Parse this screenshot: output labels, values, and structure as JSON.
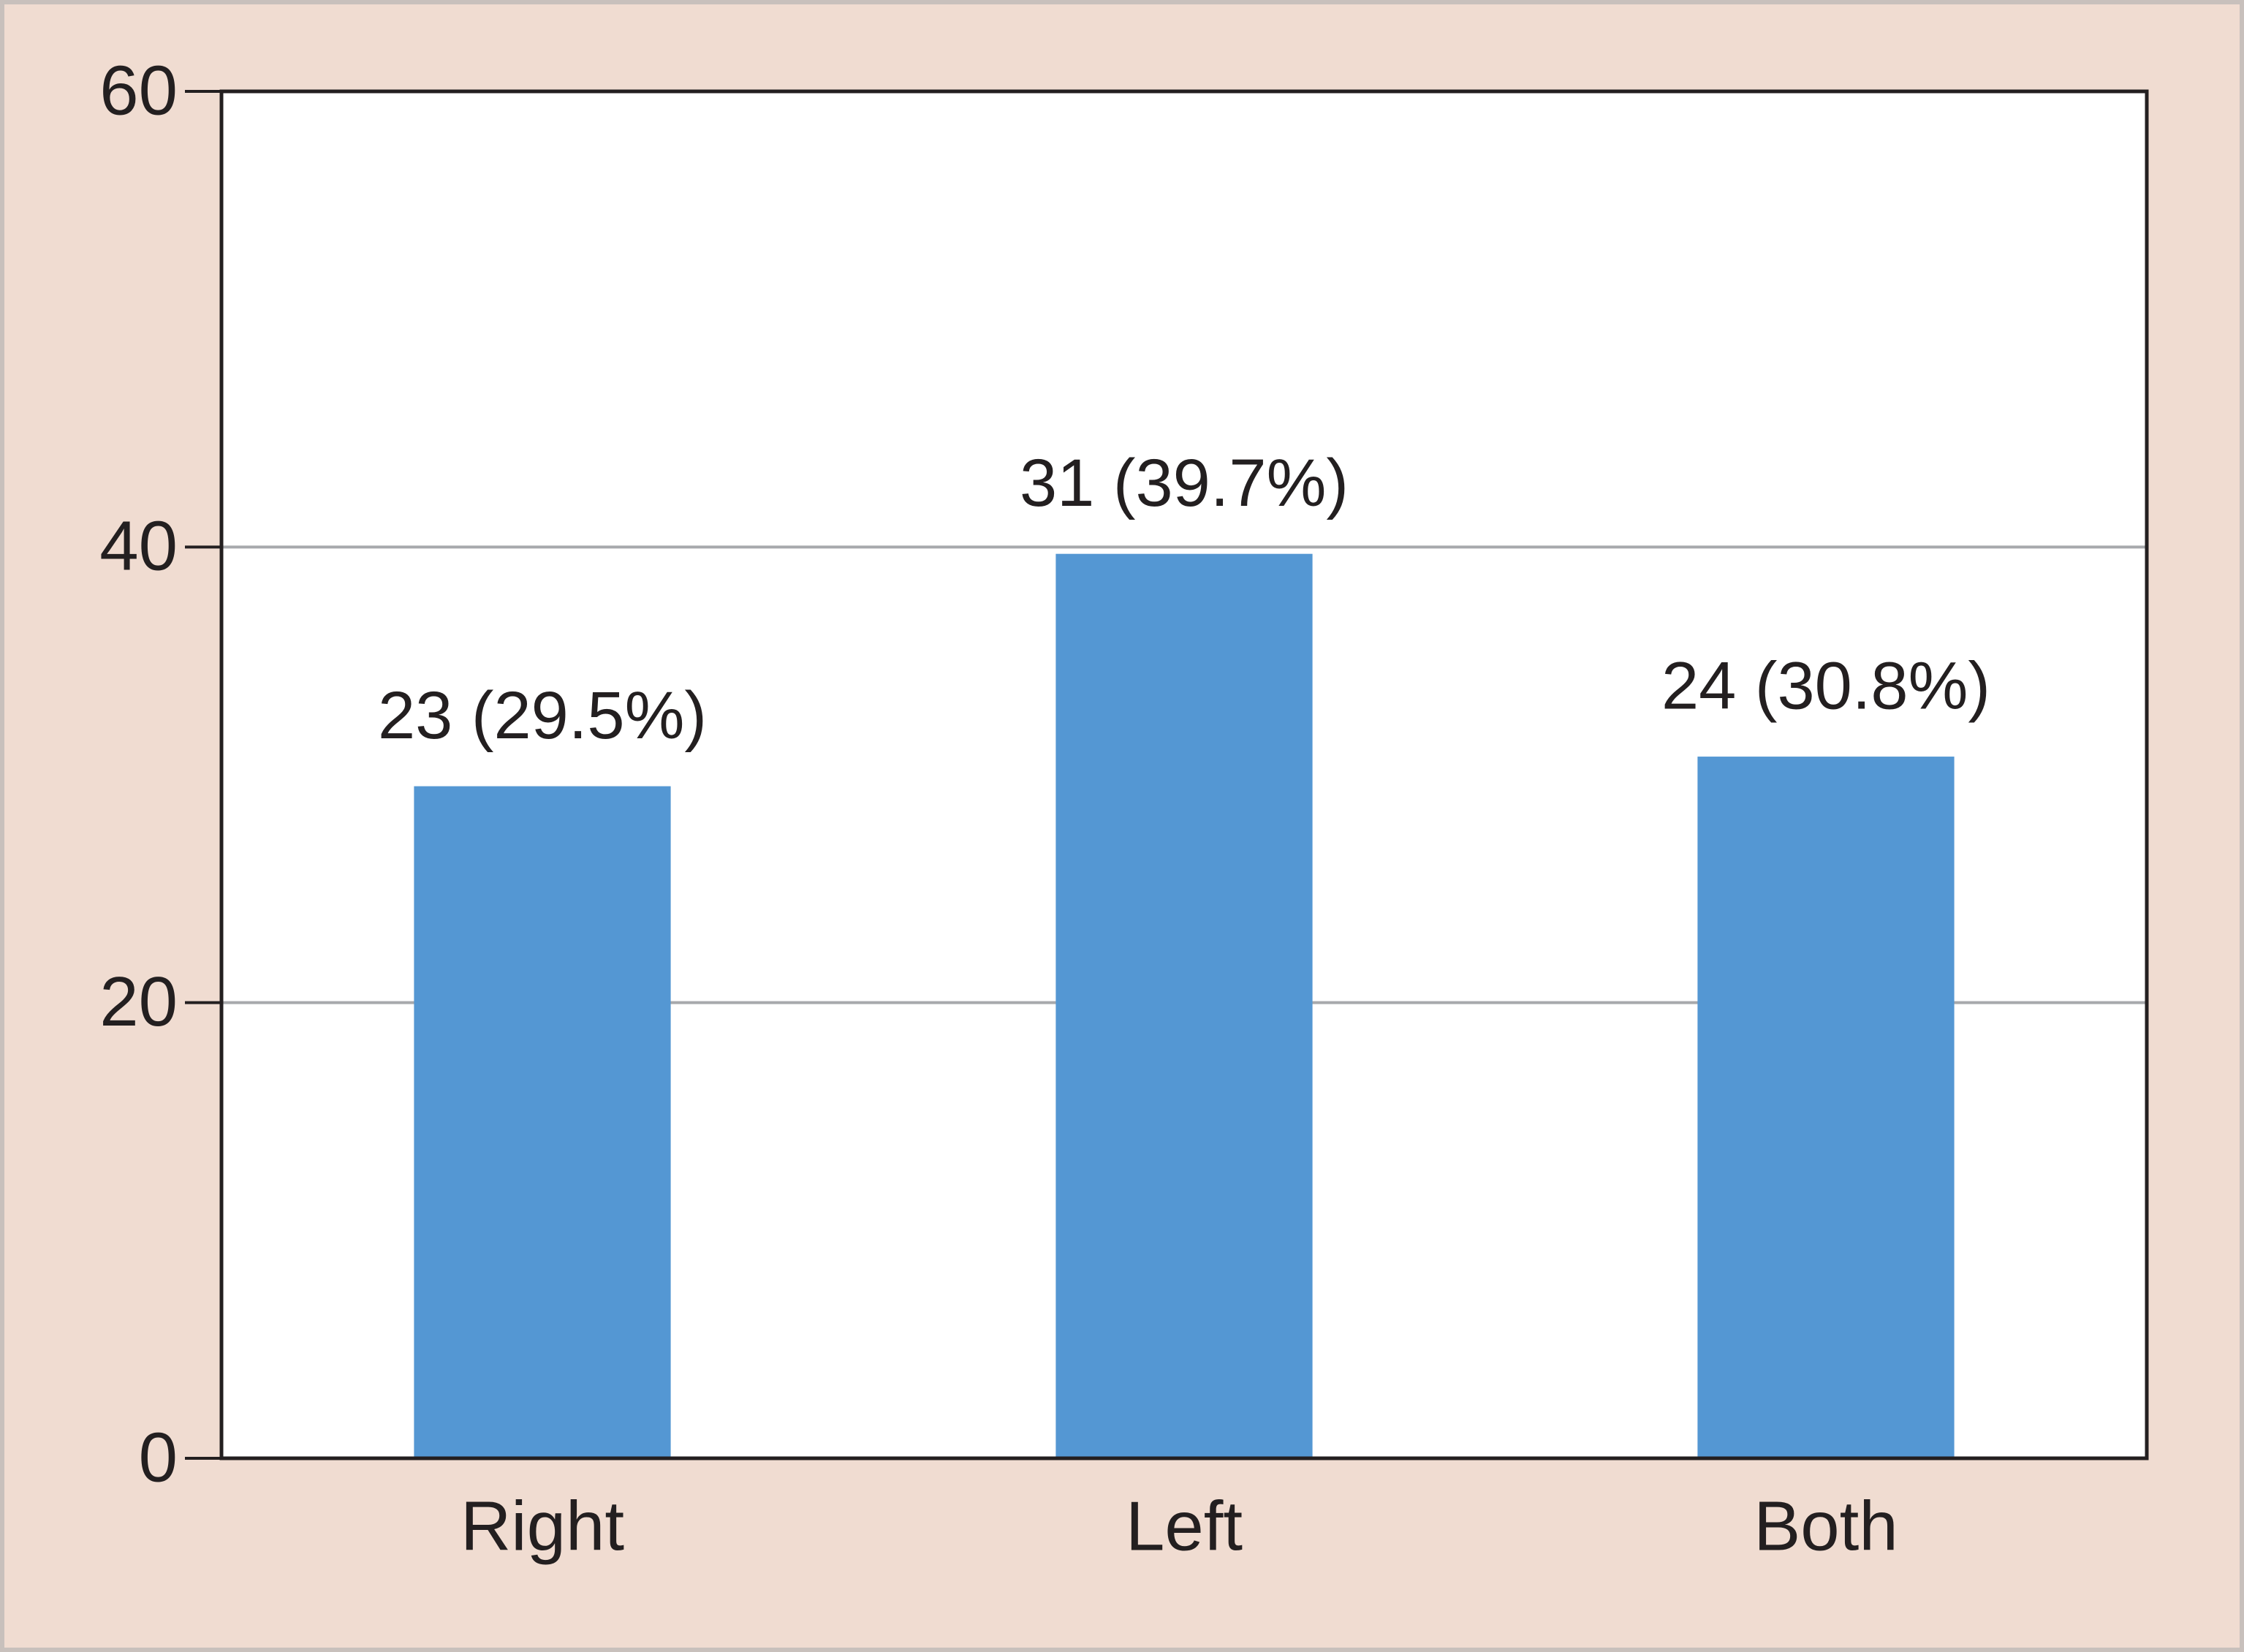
{
  "chart_data": {
    "type": "bar",
    "categories": [
      "Right",
      "Left",
      "Both"
    ],
    "values": [
      29.5,
      39.7,
      30.8
    ],
    "value_labels": [
      "23 (29.5%)",
      "31 (39.7%)",
      "24 (30.8%)"
    ],
    "color": "#5497d3",
    "ylim": [
      0,
      60
    ],
    "yticks": [
      0,
      20,
      40,
      60
    ],
    "grid": true
  }
}
